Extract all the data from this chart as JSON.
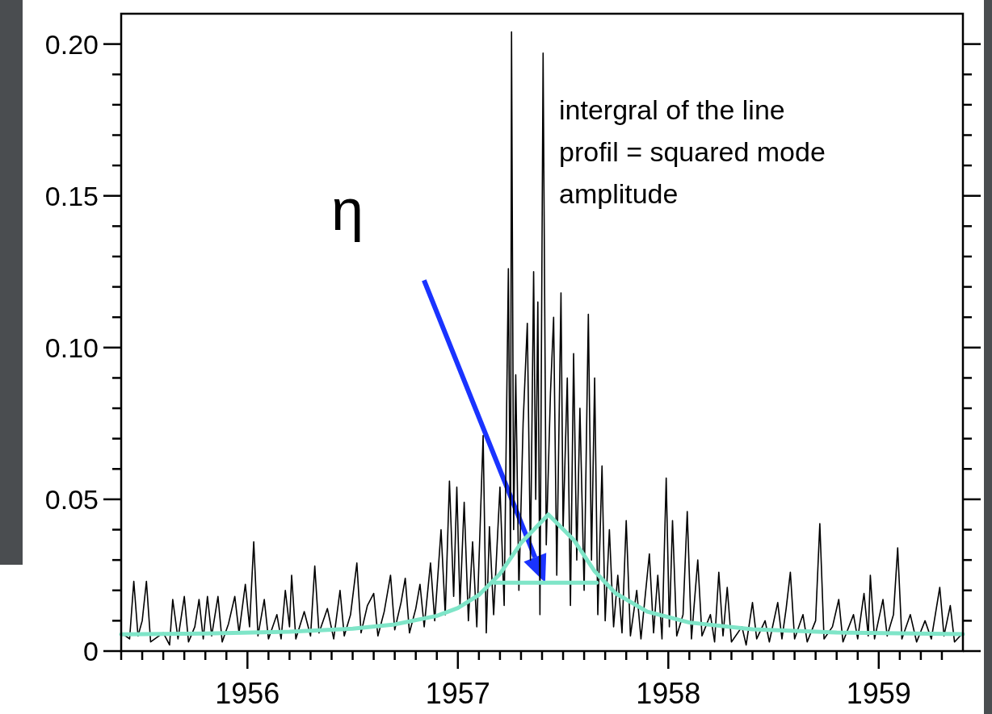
{
  "chart_data": {
    "type": "line",
    "xlim": [
      1955.4,
      1959.4
    ],
    "ylim": [
      0,
      0.21
    ],
    "xticks": [
      {
        "value": 1955.4,
        "label": null
      },
      {
        "value": 1955.5,
        "label": null
      },
      {
        "value": 1955.6,
        "label": null
      },
      {
        "value": 1955.7,
        "label": null
      },
      {
        "value": 1955.8,
        "label": null
      },
      {
        "value": 1955.9,
        "label": null
      },
      1956,
      {
        "value": 1956.1,
        "label": null
      },
      {
        "value": 1956.2,
        "label": null
      },
      {
        "value": 1956.3,
        "label": null
      },
      {
        "value": 1956.4,
        "label": null
      },
      {
        "value": 1956.5,
        "label": null
      },
      {
        "value": 1956.6,
        "label": null
      },
      {
        "value": 1956.7,
        "label": null
      },
      {
        "value": 1956.8,
        "label": null
      },
      {
        "value": 1956.9,
        "label": null
      },
      1957,
      {
        "value": 1957.1,
        "label": null
      },
      {
        "value": 1957.2,
        "label": null
      },
      {
        "value": 1957.3,
        "label": null
      },
      {
        "value": 1957.4,
        "label": null
      },
      {
        "value": 1957.5,
        "label": null
      },
      {
        "value": 1957.6,
        "label": null
      },
      {
        "value": 1957.7,
        "label": null
      },
      {
        "value": 1957.8,
        "label": null
      },
      {
        "value": 1957.9,
        "label": null
      },
      1958,
      {
        "value": 1958.1,
        "label": null
      },
      {
        "value": 1958.2,
        "label": null
      },
      {
        "value": 1958.3,
        "label": null
      },
      {
        "value": 1958.4,
        "label": null
      },
      {
        "value": 1958.5,
        "label": null
      },
      {
        "value": 1958.6,
        "label": null
      },
      {
        "value": 1958.7,
        "label": null
      },
      {
        "value": 1958.8,
        "label": null
      },
      {
        "value": 1958.9,
        "label": null
      },
      1959,
      {
        "value": 1959.1,
        "label": null
      },
      {
        "value": 1959.2,
        "label": null
      },
      {
        "value": 1959.3,
        "label": null
      }
    ],
    "yticks": [
      {
        "value": 0,
        "label": "0"
      },
      {
        "value": 0.01,
        "label": null
      },
      {
        "value": 0.02,
        "label": null
      },
      {
        "value": 0.03,
        "label": null
      },
      {
        "value": 0.04,
        "label": null
      },
      0.05,
      {
        "value": 0.06,
        "label": null
      },
      {
        "value": 0.07,
        "label": null
      },
      {
        "value": 0.08,
        "label": null
      },
      {
        "value": 0.09,
        "label": null
      },
      {
        "value": 0.1,
        "label": "0.10"
      },
      {
        "value": 0.11,
        "label": null
      },
      {
        "value": 0.12,
        "label": null
      },
      {
        "value": 0.13,
        "label": null
      },
      {
        "value": 0.14,
        "label": null
      },
      0.15,
      {
        "value": 0.16,
        "label": null
      },
      {
        "value": 0.17,
        "label": null
      },
      {
        "value": 0.18,
        "label": null
      },
      {
        "value": 0.19,
        "label": null
      },
      {
        "value": 0.2,
        "label": "0.20"
      }
    ],
    "series": [
      {
        "color": "#000000",
        "x": [
          1955.4,
          1955.44,
          1955.46,
          1955.48,
          1955.5,
          1955.52,
          1955.54,
          1955.6,
          1955.63,
          1955.645,
          1955.67,
          1955.7,
          1955.72,
          1955.75,
          1955.77,
          1955.79,
          1955.81,
          1955.83,
          1955.86,
          1955.88,
          1955.91,
          1955.94,
          1955.96,
          1955.99,
          1956.01,
          1956.03,
          1956.05,
          1956.08,
          1956.1,
          1956.14,
          1956.16,
          1956.18,
          1956.2,
          1956.21,
          1956.23,
          1956.27,
          1956.3,
          1956.32,
          1956.34,
          1956.38,
          1956.41,
          1956.44,
          1956.46,
          1956.49,
          1956.52,
          1956.54,
          1956.57,
          1956.6,
          1956.62,
          1956.65,
          1956.68,
          1956.7,
          1956.73,
          1956.75,
          1956.77,
          1956.8,
          1956.82,
          1956.84,
          1956.87,
          1956.89,
          1956.92,
          1956.94,
          1956.96,
          1956.98,
          1956.995,
          1957.01,
          1957.03,
          1957.05,
          1957.07,
          1957.09,
          1957.12,
          1957.135,
          1957.15,
          1957.17,
          1957.2,
          1957.22,
          1957.24,
          1957.25,
          1957.255,
          1957.265,
          1957.275,
          1957.29,
          1957.31,
          1957.33,
          1957.345,
          1957.36,
          1957.37,
          1957.38,
          1957.39,
          1957.405,
          1957.42,
          1957.44,
          1957.455,
          1957.47,
          1957.49,
          1957.5,
          1957.52,
          1957.535,
          1957.55,
          1957.565,
          1957.58,
          1957.6,
          1957.62,
          1957.635,
          1957.65,
          1957.665,
          1957.685,
          1957.7,
          1957.72,
          1957.74,
          1957.76,
          1957.78,
          1957.8,
          1957.82,
          1957.85,
          1957.87,
          1957.91,
          1957.93,
          1957.95,
          1957.97,
          1957.99,
          1958.005,
          1958.02,
          1958.04,
          1958.07,
          1958.09,
          1958.11,
          1958.14,
          1958.16,
          1958.2,
          1958.22,
          1958.24,
          1958.26,
          1958.28,
          1958.3,
          1958.35,
          1958.37,
          1958.4,
          1958.42,
          1958.46,
          1958.48,
          1958.52,
          1958.54,
          1958.56,
          1958.58,
          1958.6,
          1958.64,
          1958.66,
          1958.7,
          1958.72,
          1958.74,
          1958.78,
          1958.81,
          1958.83,
          1958.88,
          1958.9,
          1958.93,
          1958.95,
          1958.96,
          1958.98,
          1959.02,
          1959.04,
          1959.07,
          1959.09,
          1959.11,
          1959.15,
          1959.18,
          1959.22,
          1959.25,
          1959.29,
          1959.31,
          1959.34,
          1959.36,
          1959.4
        ],
        "values": [
          0.006,
          0.004,
          0.023,
          0.005,
          0.01,
          0.023,
          0.003,
          0.006,
          0.002,
          0.017,
          0.004,
          0.018,
          0.003,
          0.008,
          0.017,
          0.004,
          0.018,
          0.005,
          0.018,
          0.003,
          0.009,
          0.018,
          0.006,
          0.022,
          0.008,
          0.036,
          0.005,
          0.017,
          0.004,
          0.012,
          0.004,
          0.02,
          0.008,
          0.025,
          0.004,
          0.013,
          0.005,
          0.028,
          0.006,
          0.014,
          0.004,
          0.02,
          0.005,
          0.012,
          0.029,
          0.006,
          0.015,
          0.019,
          0.005,
          0.013,
          0.025,
          0.007,
          0.016,
          0.024,
          0.006,
          0.014,
          0.022,
          0.008,
          0.029,
          0.01,
          0.04,
          0.012,
          0.056,
          0.018,
          0.054,
          0.015,
          0.049,
          0.01,
          0.036,
          0.008,
          0.071,
          0.006,
          0.041,
          0.012,
          0.054,
          0.015,
          0.126,
          0.03,
          0.204,
          0.04,
          0.091,
          0.02,
          0.075,
          0.108,
          0.03,
          0.125,
          0.05,
          0.115,
          0.012,
          0.197,
          0.035,
          0.085,
          0.11,
          0.025,
          0.118,
          0.04,
          0.09,
          0.015,
          0.098,
          0.03,
          0.08,
          0.02,
          0.111,
          0.03,
          0.09,
          0.012,
          0.061,
          0.01,
          0.04,
          0.008,
          0.025,
          0.006,
          0.043,
          0.005,
          0.02,
          0.004,
          0.032,
          0.006,
          0.025,
          0.004,
          0.057,
          0.008,
          0.043,
          0.005,
          0.012,
          0.046,
          0.004,
          0.03,
          0.005,
          0.012,
          0.003,
          0.026,
          0.005,
          0.021,
          0.003,
          0.008,
          0.002,
          0.016,
          0.004,
          0.01,
          0.003,
          0.016,
          0.004,
          0.014,
          0.026,
          0.004,
          0.012,
          0.003,
          0.01,
          0.042,
          0.004,
          0.008,
          0.017,
          0.003,
          0.012,
          0.004,
          0.019,
          0.005,
          0.025,
          0.004,
          0.017,
          0.005,
          0.012,
          0.034,
          0.004,
          0.012,
          0.003,
          0.01,
          0.004,
          0.021,
          0.005,
          0.015,
          0.003,
          0.006
        ]
      },
      {
        "color": "#7fe5c8",
        "x": [
          1955.4,
          1955.8,
          1956.2,
          1956.5,
          1956.7,
          1956.9,
          1957.0,
          1957.1,
          1957.2,
          1957.3,
          1957.43,
          1957.55,
          1957.65,
          1957.75,
          1957.9,
          1958.1,
          1958.4,
          1958.8,
          1959.4
        ],
        "values": [
          0.0055,
          0.0058,
          0.0064,
          0.0074,
          0.0088,
          0.0116,
          0.0142,
          0.0185,
          0.0254,
          0.0356,
          0.045,
          0.0367,
          0.0263,
          0.019,
          0.013,
          0.0094,
          0.0072,
          0.0061,
          0.0056
        ]
      },
      {
        "color": "#7fe5c8",
        "x": [
          1957.17,
          1957.66
        ],
        "values": [
          0.0225,
          0.0225
        ]
      }
    ],
    "annotations": [
      "η",
      "intergral of the line profil = squared mode amplitude"
    ]
  }
}
